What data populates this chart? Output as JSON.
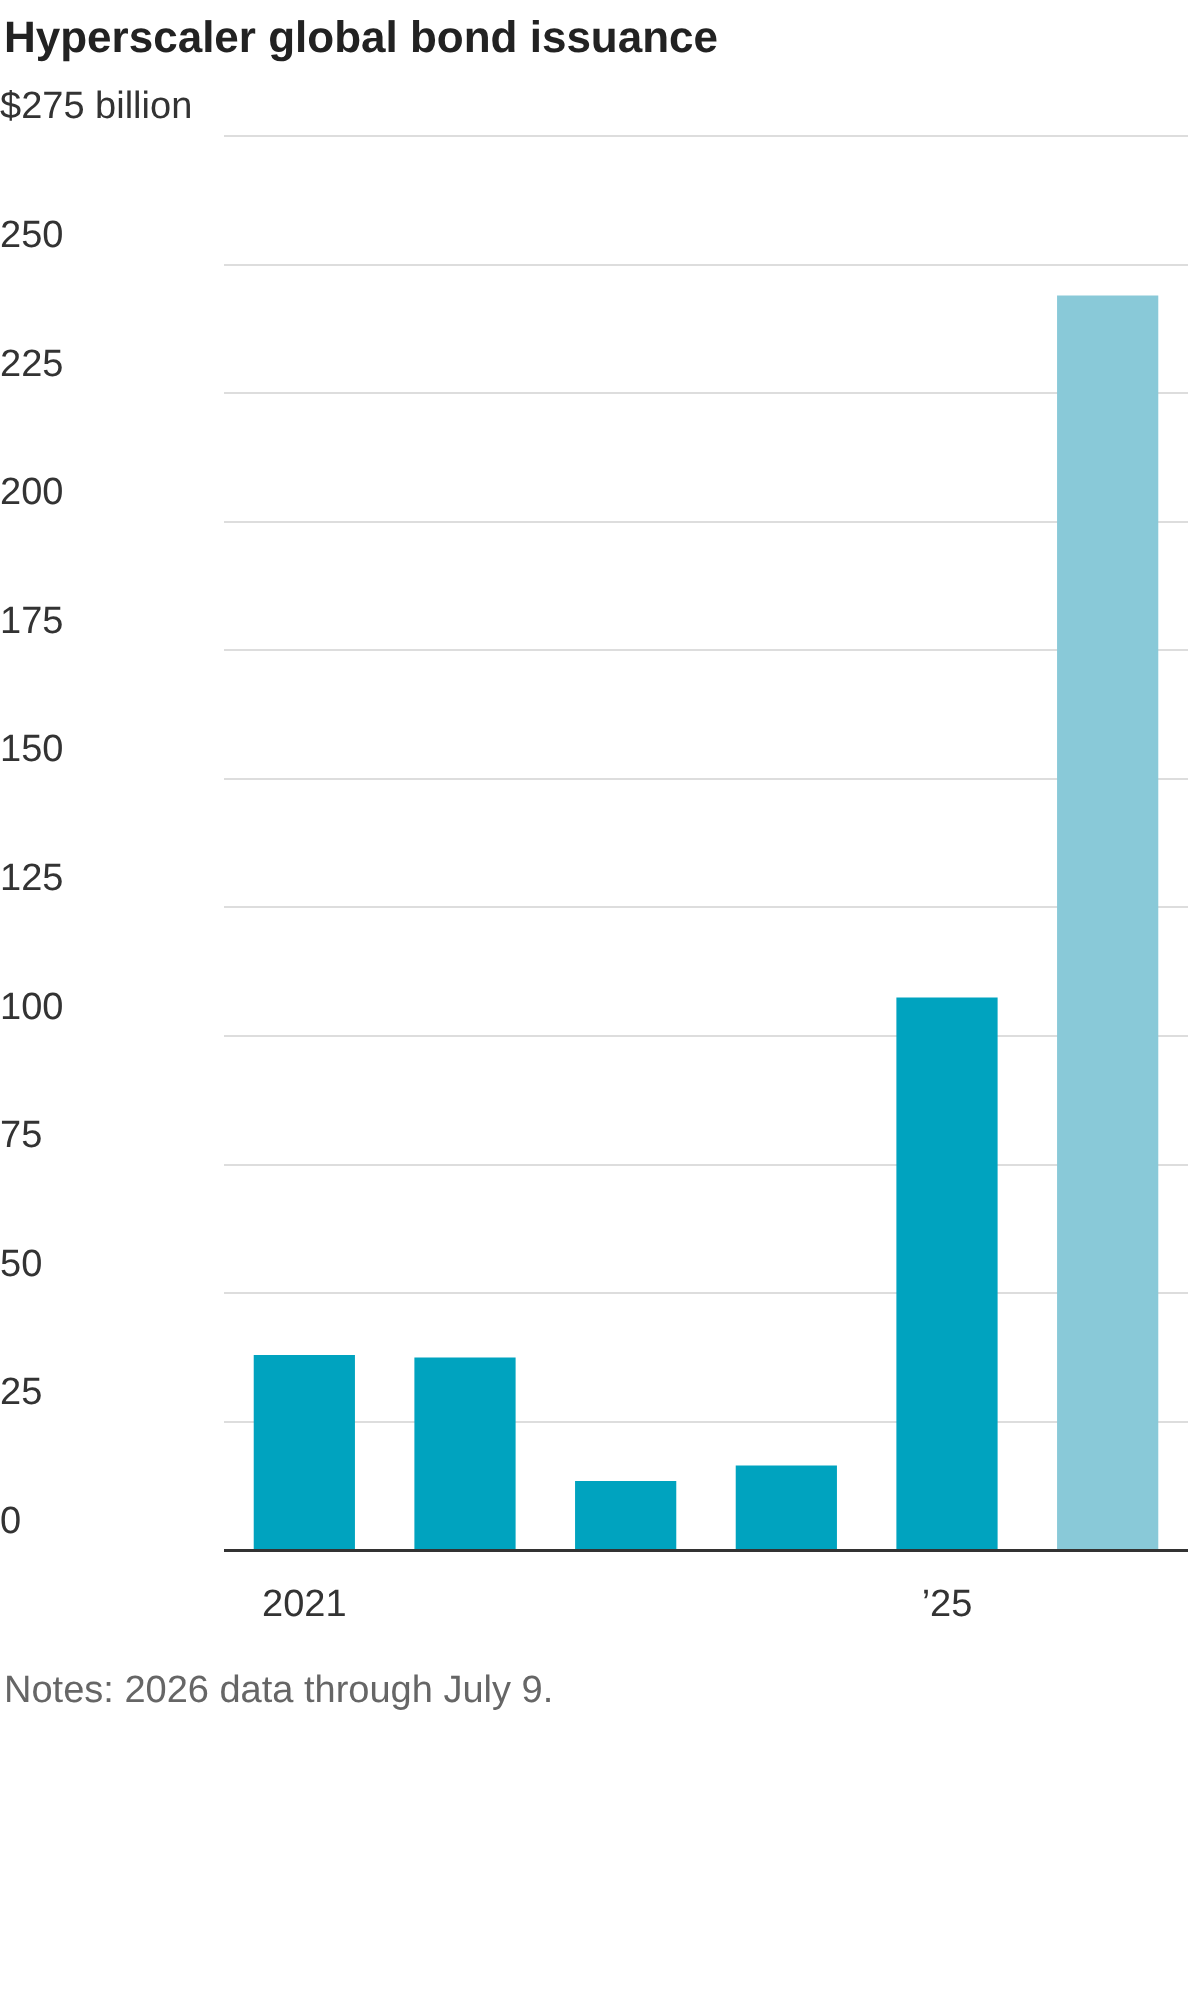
{
  "chart_data": {
    "type": "bar",
    "title": "Hyperscaler global bond issuance",
    "categories": [
      "2021",
      null,
      null,
      null,
      "’25",
      null
    ],
    "values": [
      38,
      37.5,
      13.5,
      16.5,
      107.5,
      244
    ],
    "colors": [
      "#00a3bf",
      "#00a3bf",
      "#00a3bf",
      "#00a3bf",
      "#00a3bf",
      "#89c9d8"
    ],
    "ylim": [
      0,
      275
    ],
    "yticks": [
      0,
      25,
      50,
      75,
      100,
      125,
      150,
      175,
      200,
      225,
      250,
      {
        "value": 275,
        "label": "$275 billion"
      }
    ],
    "grid": "y",
    "legend": false,
    "annotations": [
      "Notes: 2026 data through July 9."
    ]
  }
}
